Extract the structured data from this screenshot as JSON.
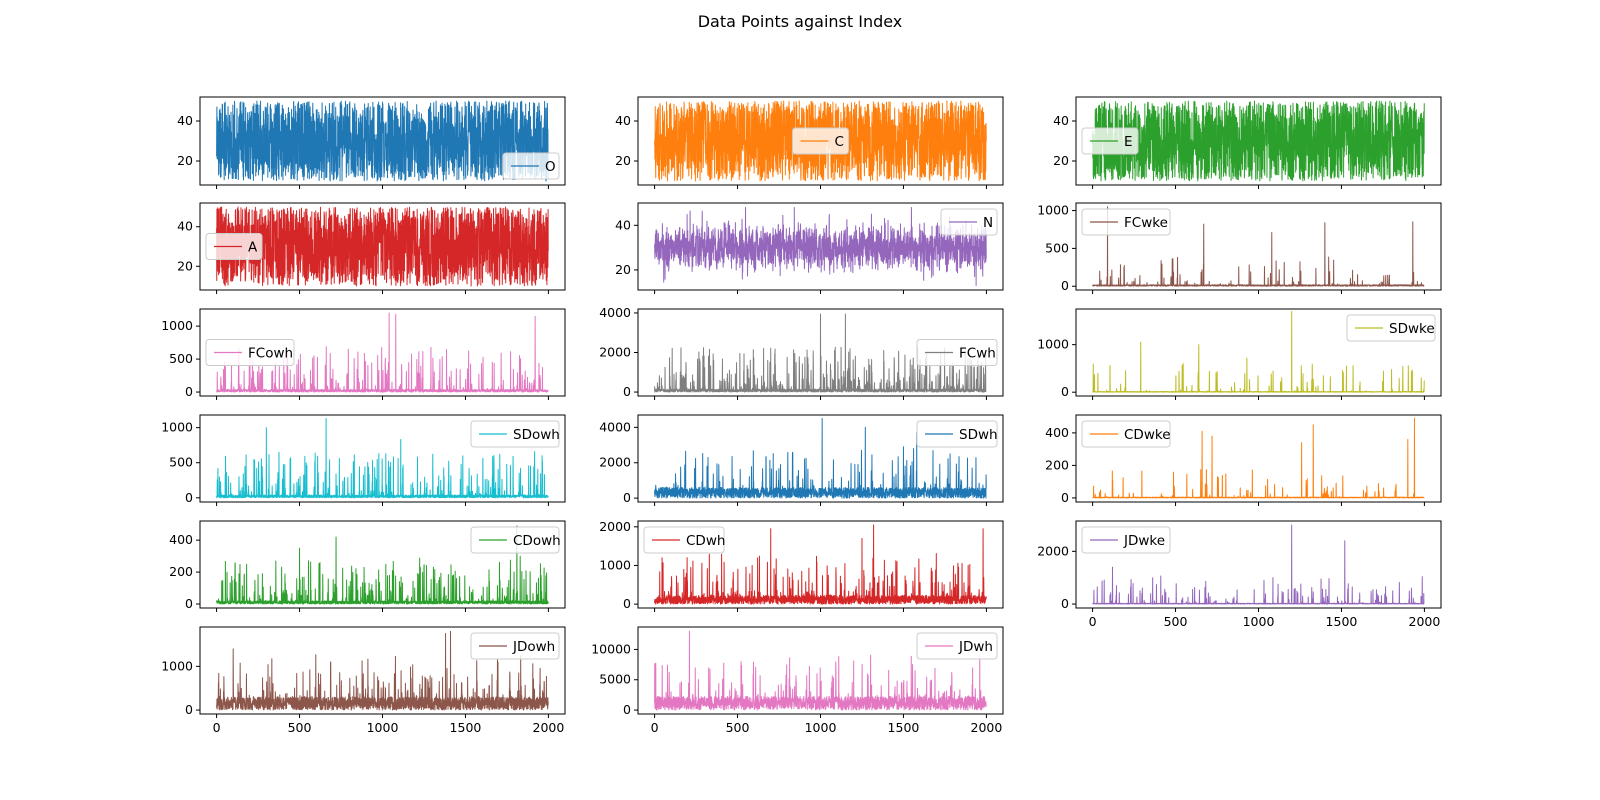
{
  "title": "Data Points against Index",
  "chart_data": [
    {
      "type": "line",
      "series": [
        {
          "name": "O",
          "color": "#1f77b4",
          "kind": "uniform",
          "low": 10,
          "high": 50
        }
      ],
      "x_range": [
        0,
        1999
      ],
      "ylim": [
        8,
        52
      ],
      "yticks": [
        20,
        40
      ],
      "xticks": [
        0,
        500,
        1000,
        1500,
        2000
      ],
      "legend": "lower right"
    },
    {
      "type": "line",
      "series": [
        {
          "name": "C",
          "color": "#ff7f0e",
          "kind": "uniform",
          "low": 10,
          "high": 50
        }
      ],
      "x_range": [
        0,
        1999
      ],
      "ylim": [
        8,
        52
      ],
      "yticks": [
        20,
        40
      ],
      "xticks": [
        0,
        500,
        1000,
        1500,
        2000
      ],
      "legend": "center"
    },
    {
      "type": "line",
      "series": [
        {
          "name": "E",
          "color": "#2ca02c",
          "kind": "uniform",
          "low": 10,
          "high": 50
        }
      ],
      "x_range": [
        0,
        1999
      ],
      "ylim": [
        8,
        52
      ],
      "yticks": [
        20,
        40
      ],
      "xticks": [
        0,
        500,
        1000,
        1500,
        2000
      ],
      "legend": "center left"
    },
    {
      "type": "line",
      "series": [
        {
          "name": "A",
          "color": "#d62728",
          "kind": "uniform",
          "low": 10,
          "high": 50
        }
      ],
      "x_range": [
        0,
        1999
      ],
      "ylim": [
        8,
        52
      ],
      "yticks": [
        20,
        40
      ],
      "xticks": [
        0,
        500,
        1000,
        1500,
        2000
      ],
      "legend": "center left"
    },
    {
      "type": "line",
      "series": [
        {
          "name": "N",
          "color": "#9467bd",
          "kind": "normal",
          "mean": 30,
          "sd": 5,
          "min": 13,
          "max": 48
        }
      ],
      "x_range": [
        0,
        1999
      ],
      "ylim": [
        11,
        50
      ],
      "yticks": [
        20,
        40
      ],
      "xticks": [
        0,
        500,
        1000,
        1500,
        2000
      ],
      "legend": "upper right"
    },
    {
      "type": "line",
      "series": [
        {
          "name": "FCwke",
          "color": "#8c564b",
          "kind": "sparse",
          "base": 20,
          "spike_prob": 0.05,
          "max": 1050,
          "peaks": [
            [
              90,
              1050
            ],
            [
              670,
              820
            ],
            [
              1400,
              840
            ],
            [
              1930,
              850
            ],
            [
              1080,
              710
            ]
          ]
        }
      ],
      "x_range": [
        0,
        1999
      ],
      "ylim": [
        -50,
        1100
      ],
      "yticks": [
        0,
        500,
        1000
      ],
      "xticks": [
        0,
        500,
        1000,
        1500,
        2000
      ],
      "legend": "upper left"
    },
    {
      "type": "line",
      "series": [
        {
          "name": "FCowh",
          "color": "#e377c2",
          "kind": "spiky",
          "base": 40,
          "spike_prob": 0.12,
          "max": 1200,
          "peaks": [
            [
              1040,
              1200
            ],
            [
              1080,
              1180
            ],
            [
              1920,
              1150
            ]
          ]
        }
      ],
      "x_range": [
        0,
        1999
      ],
      "ylim": [
        -60,
        1260
      ],
      "yticks": [
        0,
        500,
        1000
      ],
      "xticks": [
        0,
        500,
        1000,
        1500,
        2000
      ],
      "legend": "center left"
    },
    {
      "type": "line",
      "series": [
        {
          "name": "FCwh",
          "color": "#7f7f7f",
          "kind": "spiky",
          "base": 150,
          "spike_prob": 0.2,
          "max": 4000,
          "peaks": [
            [
              1000,
              3950
            ],
            [
              1150,
              3950
            ]
          ]
        }
      ],
      "x_range": [
        0,
        1999
      ],
      "ylim": [
        -200,
        4200
      ],
      "yticks": [
        0,
        2000,
        4000
      ],
      "xticks": [
        0,
        500,
        1000,
        1500,
        2000
      ],
      "legend": "center right"
    },
    {
      "type": "line",
      "series": [
        {
          "name": "SDwke",
          "color": "#bcbd22",
          "kind": "sparse",
          "base": 15,
          "spike_prob": 0.05,
          "max": 1700,
          "peaks": [
            [
              1200,
              1700
            ],
            [
              290,
              1050
            ],
            [
              640,
              1000
            ],
            [
              930,
              720
            ],
            [
              1530,
              550
            ]
          ]
        }
      ],
      "x_range": [
        0,
        1999
      ],
      "ylim": [
        -80,
        1750
      ],
      "yticks": [
        0,
        1000
      ],
      "xticks": [
        0,
        500,
        1000,
        1500,
        2000
      ],
      "legend": "upper right"
    },
    {
      "type": "line",
      "series": [
        {
          "name": "SDowh",
          "color": "#17becf",
          "kind": "spiky",
          "base": 40,
          "spike_prob": 0.14,
          "max": 1130,
          "peaks": [
            [
              660,
              1130
            ],
            [
              300,
              1000
            ],
            [
              1110,
              830
            ],
            [
              1020,
              630
            ]
          ]
        }
      ],
      "x_range": [
        0,
        1999
      ],
      "ylim": [
        -60,
        1180
      ],
      "yticks": [
        0,
        500,
        1000
      ],
      "xticks": [
        0,
        500,
        1000,
        1500,
        2000
      ],
      "legend": "upper right"
    },
    {
      "type": "line",
      "series": [
        {
          "name": "SDwh",
          "color": "#1f77b4",
          "kind": "dense",
          "base": 400,
          "spike_prob": 0.1,
          "max": 4500,
          "peaks": [
            [
              1010,
              4500
            ],
            [
              1270,
              4000
            ],
            [
              1580,
              3700
            ]
          ]
        }
      ],
      "x_range": [
        0,
        1999
      ],
      "ylim": [
        -220,
        4700
      ],
      "yticks": [
        0,
        2000,
        4000
      ],
      "xticks": [
        0,
        500,
        1000,
        1500,
        2000
      ],
      "legend": "upper right"
    },
    {
      "type": "line",
      "series": [
        {
          "name": "CDwke",
          "color": "#ff7f0e",
          "kind": "sparse",
          "base": 5,
          "spike_prob": 0.05,
          "max": 490,
          "peaks": [
            [
              1940,
              490
            ],
            [
              1330,
              450
            ],
            [
              660,
              410
            ],
            [
              720,
              380
            ],
            [
              1900,
              360
            ],
            [
              1260,
              340
            ]
          ]
        }
      ],
      "x_range": [
        0,
        1999
      ],
      "ylim": [
        -25,
        510
      ],
      "yticks": [
        0,
        200,
        400
      ],
      "xticks": [
        0,
        500,
        1000,
        1500,
        2000
      ],
      "legend": "upper left"
    },
    {
      "type": "line",
      "series": [
        {
          "name": "CDowh",
          "color": "#2ca02c",
          "kind": "spiky",
          "base": 20,
          "spike_prob": 0.14,
          "max": 490,
          "peaks": [
            [
              1810,
              490
            ],
            [
              720,
              420
            ],
            [
              500,
              350
            ],
            [
              1830,
              300
            ]
          ]
        }
      ],
      "x_range": [
        0,
        1999
      ],
      "ylim": [
        -25,
        520
      ],
      "yticks": [
        0,
        200,
        400
      ],
      "xticks": [
        0,
        500,
        1000,
        1500,
        2000
      ],
      "legend": "upper right"
    },
    {
      "type": "line",
      "series": [
        {
          "name": "CDwh",
          "color": "#d62728",
          "kind": "dense",
          "base": 150,
          "spike_prob": 0.14,
          "max": 2050,
          "peaks": [
            [
              1320,
              2050
            ],
            [
              1980,
              1950
            ],
            [
              700,
              1950
            ],
            [
              1250,
              1700
            ]
          ]
        }
      ],
      "x_range": [
        0,
        1999
      ],
      "ylim": [
        -100,
        2150
      ],
      "yticks": [
        0,
        1000,
        2000
      ],
      "xticks": [
        0,
        500,
        1000,
        1500,
        2000
      ],
      "legend": "upper left"
    },
    {
      "type": "line",
      "series": [
        {
          "name": "JDwke",
          "color": "#9467bd",
          "kind": "sparse",
          "base": 30,
          "spike_prob": 0.08,
          "max": 3000,
          "peaks": [
            [
              1200,
              3000
            ],
            [
              1520,
              2400
            ],
            [
              120,
              1400
            ]
          ]
        }
      ],
      "x_range": [
        0,
        1999
      ],
      "ylim": [
        -150,
        3150
      ],
      "yticks": [
        0,
        2000
      ],
      "xticks": [
        0,
        500,
        1000,
        1500,
        2000
      ],
      "legend": "upper left"
    },
    {
      "type": "line",
      "series": [
        {
          "name": "JDowh",
          "color": "#8c564b",
          "kind": "dense",
          "base": 200,
          "spike_prob": 0.14,
          "max": 1800,
          "peaks": [
            [
              1410,
              1800
            ],
            [
              1380,
              1750
            ],
            [
              100,
              1400
            ]
          ]
        }
      ],
      "x_range": [
        0,
        1999
      ],
      "ylim": [
        -90,
        1900
      ],
      "yticks": [
        0,
        1000
      ],
      "xticks": [
        0,
        500,
        1000,
        1500,
        2000
      ],
      "legend": "upper right"
    },
    {
      "type": "line",
      "series": [
        {
          "name": "JDwh",
          "color": "#e377c2",
          "kind": "dense",
          "base": 1500,
          "spike_prob": 0.1,
          "max": 13000,
          "peaks": [
            [
              210,
              13000
            ],
            [
              1200,
              8100
            ],
            [
              1690,
              6900
            ]
          ]
        }
      ],
      "x_range": [
        0,
        1999
      ],
      "ylim": [
        -650,
        13700
      ],
      "yticks": [
        0,
        5000,
        10000
      ],
      "xticks": [
        0,
        500,
        1000,
        1500,
        2000
      ],
      "legend": "upper right"
    }
  ]
}
